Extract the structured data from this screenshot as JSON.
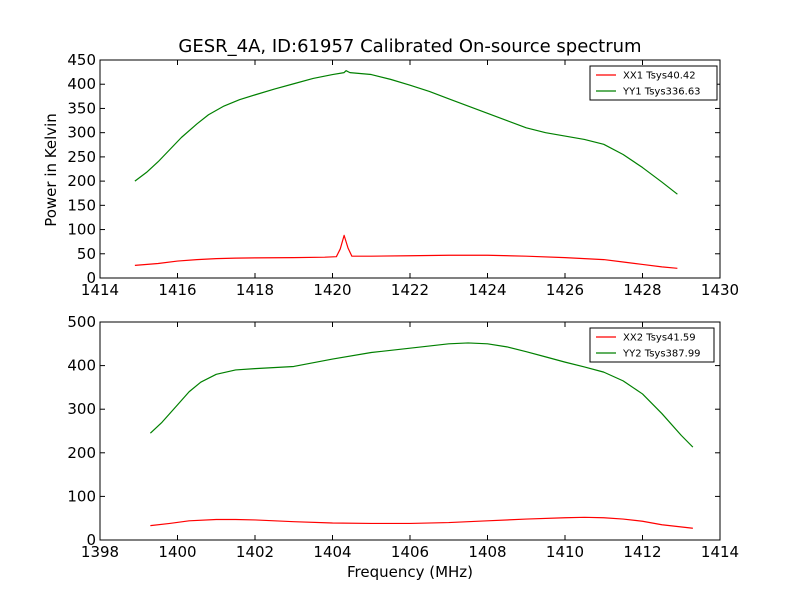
{
  "title": "GESR_4A, ID:61957 Calibrated On-source spectrum",
  "ylabel": "Power in Kelvin",
  "xlabel": "Frequency (MHz)",
  "chart_data": [
    {
      "type": "line",
      "xlim": [
        1414,
        1430
      ],
      "ylim": [
        0,
        450
      ],
      "xticks": [
        "1414",
        "1416",
        "1418",
        "1420",
        "1422",
        "1424",
        "1426",
        "1428",
        "1430"
      ],
      "yticks": [
        "0",
        "50",
        "100",
        "150",
        "200",
        "250",
        "300",
        "350",
        "400",
        "450"
      ],
      "legend_position": "top-right",
      "series": [
        {
          "name": "XX1 Tsys40.42",
          "color": "#ff0000",
          "points": [
            [
              1414.9,
              26
            ],
            [
              1415.5,
              30
            ],
            [
              1416.0,
              35
            ],
            [
              1416.5,
              38
            ],
            [
              1417.0,
              40
            ],
            [
              1417.5,
              41
            ],
            [
              1418.0,
              41.5
            ],
            [
              1419.0,
              42
            ],
            [
              1419.8,
              43
            ],
            [
              1420.1,
              44
            ],
            [
              1420.2,
              60
            ],
            [
              1420.3,
              88
            ],
            [
              1420.4,
              62
            ],
            [
              1420.5,
              45
            ],
            [
              1421.0,
              45
            ],
            [
              1422.0,
              46
            ],
            [
              1423.0,
              47
            ],
            [
              1424.0,
              47
            ],
            [
              1425.0,
              45
            ],
            [
              1426.0,
              42
            ],
            [
              1427.0,
              38
            ],
            [
              1427.5,
              33
            ],
            [
              1428.0,
              28
            ],
            [
              1428.5,
              23
            ],
            [
              1428.9,
              20
            ]
          ]
        },
        {
          "name": "YY1 Tsys336.63",
          "color": "#008000",
          "points": [
            [
              1414.9,
              200
            ],
            [
              1415.2,
              218
            ],
            [
              1415.5,
              240
            ],
            [
              1415.8,
              265
            ],
            [
              1416.1,
              290
            ],
            [
              1416.5,
              318
            ],
            [
              1416.8,
              337
            ],
            [
              1417.2,
              355
            ],
            [
              1417.6,
              368
            ],
            [
              1418.0,
              378
            ],
            [
              1418.5,
              390
            ],
            [
              1419.0,
              401
            ],
            [
              1419.5,
              412
            ],
            [
              1420.0,
              420
            ],
            [
              1420.3,
              424
            ],
            [
              1420.35,
              428
            ],
            [
              1420.45,
              424
            ],
            [
              1421.0,
              420
            ],
            [
              1421.5,
              410
            ],
            [
              1422.0,
              398
            ],
            [
              1422.5,
              385
            ],
            [
              1423.0,
              370
            ],
            [
              1423.5,
              355
            ],
            [
              1424.0,
              340
            ],
            [
              1424.5,
              325
            ],
            [
              1425.0,
              310
            ],
            [
              1425.5,
              300
            ],
            [
              1426.0,
              293
            ],
            [
              1426.5,
              286
            ],
            [
              1427.0,
              276
            ],
            [
              1427.5,
              255
            ],
            [
              1428.0,
              228
            ],
            [
              1428.5,
              198
            ],
            [
              1428.9,
              173
            ]
          ]
        }
      ]
    },
    {
      "type": "line",
      "xlim": [
        1398,
        1414
      ],
      "ylim": [
        0,
        500
      ],
      "xticks": [
        "1398",
        "1400",
        "1402",
        "1404",
        "1406",
        "1408",
        "1410",
        "1412",
        "1414"
      ],
      "yticks": [
        "0",
        "100",
        "200",
        "300",
        "400",
        "500"
      ],
      "legend_position": "top-right",
      "series": [
        {
          "name": "XX2 Tsys41.59",
          "color": "#ff0000",
          "points": [
            [
              1399.3,
              33
            ],
            [
              1399.8,
              38
            ],
            [
              1400.3,
              44
            ],
            [
              1401.0,
              47
            ],
            [
              1401.5,
              47
            ],
            [
              1402.0,
              46
            ],
            [
              1403.0,
              42
            ],
            [
              1404.0,
              39
            ],
            [
              1405.0,
              38
            ],
            [
              1406.0,
              38
            ],
            [
              1407.0,
              40
            ],
            [
              1408.0,
              44
            ],
            [
              1409.0,
              48
            ],
            [
              1410.0,
              51
            ],
            [
              1410.5,
              52
            ],
            [
              1411.0,
              51
            ],
            [
              1411.5,
              48
            ],
            [
              1412.0,
              43
            ],
            [
              1412.5,
              35
            ],
            [
              1413.3,
              27
            ]
          ]
        },
        {
          "name": "YY2 Tsys387.99",
          "color": "#008000",
          "points": [
            [
              1399.3,
              245
            ],
            [
              1399.6,
              270
            ],
            [
              1400.0,
              310
            ],
            [
              1400.3,
              340
            ],
            [
              1400.6,
              362
            ],
            [
              1401.0,
              380
            ],
            [
              1401.5,
              390
            ],
            [
              1402.0,
              393
            ],
            [
              1403.0,
              398
            ],
            [
              1404.0,
              415
            ],
            [
              1405.0,
              430
            ],
            [
              1406.0,
              440
            ],
            [
              1407.0,
              450
            ],
            [
              1407.5,
              452
            ],
            [
              1408.0,
              450
            ],
            [
              1408.5,
              443
            ],
            [
              1409.0,
              432
            ],
            [
              1409.5,
              420
            ],
            [
              1410.0,
              408
            ],
            [
              1410.5,
              397
            ],
            [
              1411.0,
              385
            ],
            [
              1411.5,
              365
            ],
            [
              1412.0,
              335
            ],
            [
              1412.5,
              290
            ],
            [
              1413.0,
              240
            ],
            [
              1413.3,
              213
            ]
          ]
        }
      ]
    }
  ]
}
